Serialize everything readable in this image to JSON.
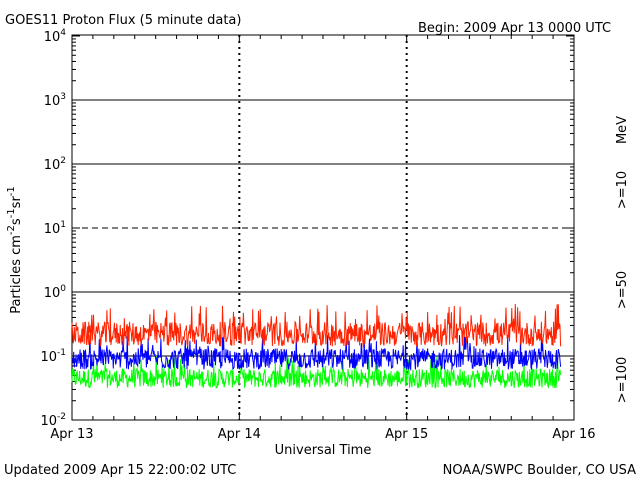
{
  "chart_data": {
    "type": "line",
    "title": "GOES11 Proton Flux (5 minute data)",
    "begin_label": "Begin: 2009 Apr 13 0000 UTC",
    "xlabel": "Universal Time",
    "ylabel_parts": {
      "base": "Particles cm",
      "exp1": "-2",
      "s": "s",
      "exp2": "-1",
      "sr": "sr",
      "exp3": "-1"
    },
    "x_ticks": [
      "Apr 13",
      "Apr 14",
      "Apr 15",
      "Apr 16"
    ],
    "xlim_days": [
      0,
      3
    ],
    "y_scale": "log",
    "ylim": [
      0.01,
      10000
    ],
    "y_ticks": [
      {
        "base": "10",
        "exp": "4"
      },
      {
        "base": "10",
        "exp": "3"
      },
      {
        "base": "10",
        "exp": "2"
      },
      {
        "base": "10",
        "exp": "1"
      },
      {
        "base": "10",
        "exp": "0"
      },
      {
        "base": "10",
        "exp": "-1"
      },
      {
        "base": "10",
        "exp": "-2"
      }
    ],
    "grid": "horizontal at each decade; 10^1 dashed",
    "legend_unit": "MeV",
    "series": [
      {
        "name": ">=10",
        "color": "#ff2200",
        "typical": 0.22,
        "min": 0.13,
        "max": 0.65
      },
      {
        "name": ">=50",
        "color": "#0000ff",
        "typical": 0.09,
        "min": 0.055,
        "max": 0.22
      },
      {
        "name": ">=100",
        "color": "#00ff00",
        "typical": 0.045,
        "min": 0.028,
        "max": 0.1
      }
    ],
    "data_end_day": 2.92
  },
  "footer": {
    "updated": "Updated 2009 Apr 15 22:00:02 UTC",
    "source": "NOAA/SWPC Boulder, CO USA"
  }
}
